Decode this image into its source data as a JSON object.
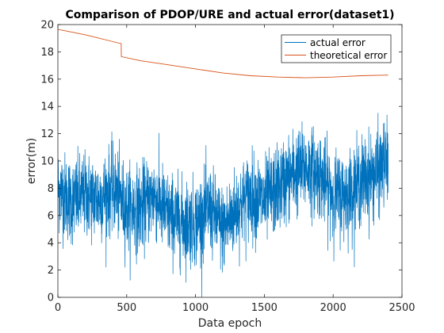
{
  "chart_data": {
    "type": "line",
    "title": "Comparison of PDOP/URE and actual error(dataset1)",
    "xlabel": "Data epoch",
    "ylabel": "error(m)",
    "xlim": [
      0,
      2500
    ],
    "ylim": [
      0,
      20
    ],
    "xticks": [
      0,
      500,
      1000,
      1500,
      2000,
      2500
    ],
    "yticks": [
      0,
      2,
      4,
      6,
      8,
      10,
      12,
      14,
      16,
      18,
      20
    ],
    "grid": false,
    "legend_position": "top-right",
    "series": [
      {
        "name": "actual error",
        "color": "#0072BD",
        "style": "noisy",
        "x": [
          0,
          100,
          200,
          300,
          400,
          500,
          600,
          700,
          800,
          900,
          1000,
          1100,
          1200,
          1300,
          1400,
          1500,
          1600,
          1700,
          1800,
          1900,
          2000,
          2100,
          2200,
          2300,
          2400
        ],
        "y": [
          8.0,
          7.0,
          7.5,
          7.2,
          8.0,
          6.5,
          6.5,
          7.5,
          6.0,
          5.5,
          5.5,
          6.5,
          5.0,
          6.5,
          7.5,
          7.0,
          8.0,
          9.0,
          9.5,
          9.0,
          7.5,
          7.5,
          8.5,
          9.0,
          10.0
        ]
      },
      {
        "name": "theoretical error",
        "color": "#D95319",
        "style": "smooth",
        "x": [
          0,
          100,
          200,
          300,
          400,
          460,
          461,
          600,
          800,
          1000,
          1200,
          1400,
          1600,
          1800,
          2000,
          2200,
          2400
        ],
        "y": [
          19.65,
          19.45,
          19.25,
          19.0,
          18.75,
          18.6,
          17.65,
          17.35,
          17.05,
          16.75,
          16.45,
          16.25,
          16.15,
          16.1,
          16.15,
          16.25,
          16.3
        ]
      }
    ]
  }
}
